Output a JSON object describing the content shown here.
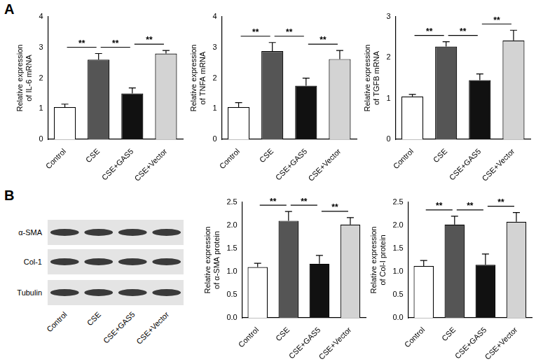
{
  "panel_labels": [
    "A",
    "B"
  ],
  "blot": {
    "rows": [
      "α-SMA",
      "Col-1",
      "Tubulin"
    ],
    "lanes": [
      "Control",
      "CSE",
      "CSE+GAS5",
      "CSE+Vector"
    ]
  },
  "chart_data": [
    {
      "type": "bar",
      "y_label": [
        "Relative expression",
        "of IL-6 mRNA"
      ],
      "categories": [
        "Control",
        "CSE",
        "CSE+GAS5",
        "CSE+Vector"
      ],
      "values": [
        1.05,
        2.6,
        1.5,
        2.8
      ],
      "error": [
        0.1,
        0.2,
        0.18,
        0.1
      ],
      "colors": [
        "#ffffff",
        "#555555",
        "#111111",
        "#d3d3d3"
      ],
      "ylim": [
        0,
        4
      ],
      "yticks": [
        0,
        1,
        2,
        3,
        4
      ],
      "grid": false,
      "annotations": [
        {
          "from": "Control",
          "to": "CSE",
          "label": "**"
        },
        {
          "from": "CSE",
          "to": "CSE+GAS5",
          "label": "**"
        },
        {
          "from": "CSE+GAS5",
          "to": "CSE+Vector",
          "label": "**"
        }
      ]
    },
    {
      "type": "bar",
      "y_label": [
        "Relative expression",
        "of TNFA mRNA"
      ],
      "categories": [
        "Control",
        "CSE",
        "CSE+GAS5",
        "CSE+Vector"
      ],
      "values": [
        1.05,
        2.88,
        1.75,
        2.62
      ],
      "error": [
        0.15,
        0.28,
        0.25,
        0.28
      ],
      "colors": [
        "#ffffff",
        "#555555",
        "#111111",
        "#d3d3d3"
      ],
      "ylim": [
        0,
        4
      ],
      "yticks": [
        0,
        1,
        2,
        3,
        4
      ],
      "grid": false,
      "annotations": [
        {
          "from": "Control",
          "to": "CSE",
          "label": "**"
        },
        {
          "from": "CSE",
          "to": "CSE+GAS5",
          "label": "**"
        },
        {
          "from": "CSE+GAS5",
          "to": "CSE+Vector",
          "label": "**"
        }
      ]
    },
    {
      "type": "bar",
      "y_label": [
        "Relative expression",
        "of TGFB mRNA"
      ],
      "categories": [
        "Control",
        "CSE",
        "CSE+GAS5",
        "CSE+Vector"
      ],
      "values": [
        1.05,
        2.27,
        1.45,
        2.42
      ],
      "error": [
        0.05,
        0.12,
        0.15,
        0.25
      ],
      "colors": [
        "#ffffff",
        "#555555",
        "#111111",
        "#d3d3d3"
      ],
      "ylim": [
        0,
        3
      ],
      "yticks": [
        0,
        1,
        2,
        3
      ],
      "grid": false,
      "annotations": [
        {
          "from": "Control",
          "to": "CSE",
          "label": "**"
        },
        {
          "from": "CSE",
          "to": "CSE+GAS5",
          "label": "**"
        },
        {
          "from": "CSE+GAS5",
          "to": "CSE+Vector",
          "label": "**"
        }
      ]
    },
    {
      "type": "bar",
      "y_label": [
        "Relative expression",
        "of α-SMA protein"
      ],
      "categories": [
        "Control",
        "CSE",
        "CSE+GAS5",
        "CSE+Vector"
      ],
      "values": [
        1.1,
        2.1,
        1.17,
        2.02
      ],
      "error": [
        0.08,
        0.2,
        0.18,
        0.15
      ],
      "colors": [
        "#ffffff",
        "#555555",
        "#111111",
        "#d3d3d3"
      ],
      "ylim": [
        0,
        2.5
      ],
      "yticks": [
        {
          "value": 0,
          "label": "0.0"
        },
        {
          "value": 0.5,
          "label": "0.5"
        },
        {
          "value": 1,
          "label": "1.0"
        },
        {
          "value": 1.5,
          "label": "1.5"
        },
        {
          "value": 2,
          "label": "2.0"
        },
        {
          "value": 2.5,
          "label": "2.5"
        }
      ],
      "grid": false,
      "annotations": [
        {
          "from": "Control",
          "to": "CSE",
          "label": "**"
        },
        {
          "from": "CSE",
          "to": "CSE+GAS5",
          "label": "**"
        },
        {
          "from": "CSE+GAS5",
          "to": "CSE+Vector",
          "label": "**"
        }
      ]
    },
    {
      "type": "bar",
      "y_label": [
        "Relative expression",
        "of Col-I protein"
      ],
      "categories": [
        "Control",
        "CSE",
        "CSE+GAS5",
        "CSE+Vector"
      ],
      "values": [
        1.12,
        2.02,
        1.15,
        2.08
      ],
      "error": [
        0.12,
        0.18,
        0.23,
        0.2
      ],
      "colors": [
        "#ffffff",
        "#555555",
        "#111111",
        "#d3d3d3"
      ],
      "ylim": [
        0,
        2.5
      ],
      "yticks": [
        {
          "value": 0,
          "label": "0.0"
        },
        {
          "value": 0.5,
          "label": "0.5"
        },
        {
          "value": 1,
          "label": "1.0"
        },
        {
          "value": 1.5,
          "label": "1.5"
        },
        {
          "value": 2,
          "label": "2.0"
        },
        {
          "value": 2.5,
          "label": "2.5"
        }
      ],
      "grid": false,
      "annotations": [
        {
          "from": "Control",
          "to": "CSE",
          "label": "**"
        },
        {
          "from": "CSE",
          "to": "CSE+GAS5",
          "label": "**"
        },
        {
          "from": "CSE+GAS5",
          "to": "CSE+Vector",
          "label": "**"
        }
      ]
    }
  ]
}
